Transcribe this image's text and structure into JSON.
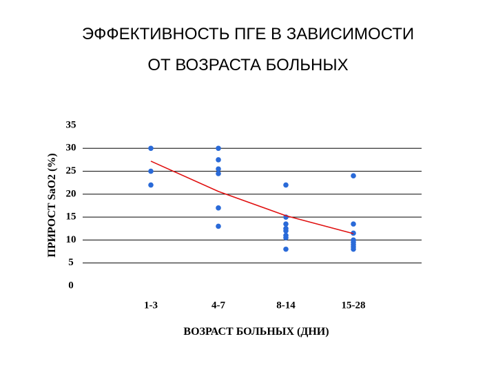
{
  "chart_data": {
    "type": "scatter",
    "title": "ЭФФЕКТИВНОСТЬ ПГЕ В ЗАВИСИМОСТИ",
    "subtitle": "ОТ ВОЗРАСТА БОЛЬНЫХ",
    "x_label": "ВОЗРАСТ БОЛЬНЫХ (ДНИ)",
    "y_label": "ПРИРОСТ SaO2 (%)",
    "categories": [
      "1-3",
      "4-7",
      "8-14",
      "15-28"
    ],
    "x": [
      "1-3",
      "1-3",
      "1-3",
      "4-7",
      "4-7",
      "4-7",
      "4-7",
      "4-7",
      "4-7",
      "8-14",
      "8-14",
      "8-14",
      "8-14",
      "8-14",
      "8-14",
      "8-14",
      "8-14",
      "15-28",
      "15-28",
      "15-28",
      "15-28",
      "15-28",
      "15-28",
      "15-28",
      "15-28"
    ],
    "y": [
      30,
      25,
      22,
      30,
      27.5,
      24.5,
      25.5,
      17,
      13,
      22,
      15,
      13.5,
      12.5,
      12,
      11,
      10.5,
      8,
      24,
      13.5,
      11.5,
      10,
      9.5,
      9,
      8.5,
      8
    ],
    "color": "#2a6ad8",
    "trend": {
      "x": [
        "1-3",
        "4-7",
        "8-14",
        "15-28"
      ],
      "y": [
        27.2,
        20.6,
        15.3,
        11.4
      ],
      "color": "#e01010"
    },
    "ylim": [
      0,
      35
    ],
    "yticks": [
      0,
      5,
      10,
      15,
      20,
      25,
      30,
      35
    ],
    "grid_lines": [
      5,
      10,
      15,
      20,
      25,
      30
    ]
  }
}
